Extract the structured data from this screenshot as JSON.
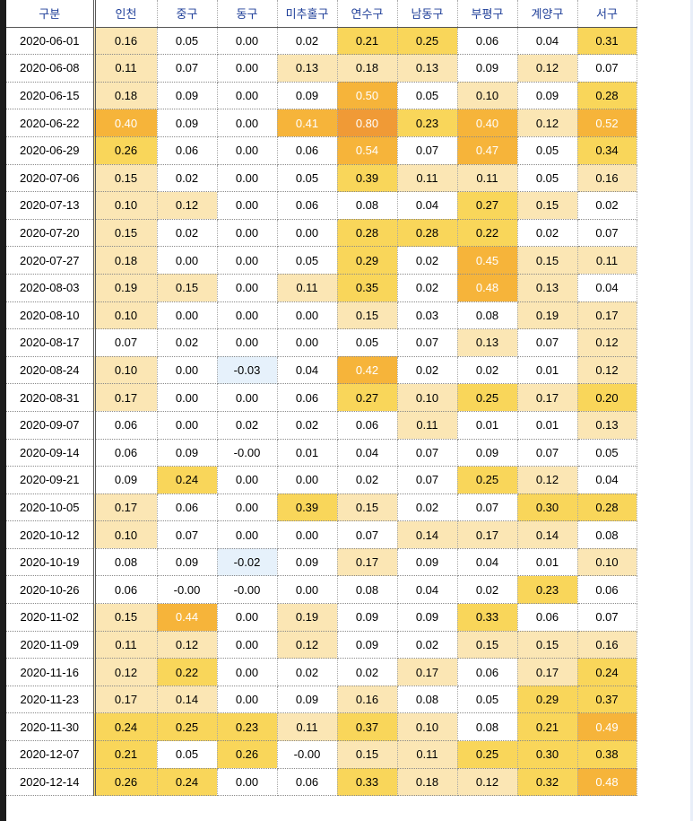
{
  "chart_data": {
    "type": "table",
    "corner_label": "구분",
    "columns": [
      "인천",
      "중구",
      "동구",
      "미추홀구",
      "연수구",
      "남동구",
      "부평구",
      "계양구",
      "서구"
    ],
    "rows": [
      {
        "date": "2020-06-01",
        "values": [
          "0.16",
          "0.05",
          "0.00",
          "0.02",
          "0.21",
          "0.25",
          "0.06",
          "0.04",
          "0.31"
        ]
      },
      {
        "date": "2020-06-08",
        "values": [
          "0.11",
          "0.07",
          "0.00",
          "0.13",
          "0.18",
          "0.13",
          "0.09",
          "0.12",
          "0.07"
        ]
      },
      {
        "date": "2020-06-15",
        "values": [
          "0.18",
          "0.09",
          "0.00",
          "0.09",
          "0.50",
          "0.05",
          "0.10",
          "0.09",
          "0.28"
        ]
      },
      {
        "date": "2020-06-22",
        "values": [
          "0.40",
          "0.09",
          "0.00",
          "0.41",
          "0.80",
          "0.23",
          "0.40",
          "0.12",
          "0.52"
        ]
      },
      {
        "date": "2020-06-29",
        "values": [
          "0.26",
          "0.06",
          "0.00",
          "0.06",
          "0.54",
          "0.07",
          "0.47",
          "0.05",
          "0.34"
        ]
      },
      {
        "date": "2020-07-06",
        "values": [
          "0.15",
          "0.02",
          "0.00",
          "0.05",
          "0.39",
          "0.11",
          "0.11",
          "0.05",
          "0.16"
        ]
      },
      {
        "date": "2020-07-13",
        "values": [
          "0.10",
          "0.12",
          "0.00",
          "0.06",
          "0.08",
          "0.04",
          "0.27",
          "0.15",
          "0.02"
        ]
      },
      {
        "date": "2020-07-20",
        "values": [
          "0.15",
          "0.02",
          "0.00",
          "0.00",
          "0.28",
          "0.28",
          "0.22",
          "0.02",
          "0.07"
        ]
      },
      {
        "date": "2020-07-27",
        "values": [
          "0.18",
          "0.00",
          "0.00",
          "0.05",
          "0.29",
          "0.02",
          "0.45",
          "0.15",
          "0.11"
        ]
      },
      {
        "date": "2020-08-03",
        "values": [
          "0.19",
          "0.15",
          "0.00",
          "0.11",
          "0.35",
          "0.02",
          "0.48",
          "0.13",
          "0.04"
        ]
      },
      {
        "date": "2020-08-10",
        "values": [
          "0.10",
          "0.00",
          "0.00",
          "0.00",
          "0.15",
          "0.03",
          "0.08",
          "0.19",
          "0.17"
        ]
      },
      {
        "date": "2020-08-17",
        "values": [
          "0.07",
          "0.02",
          "0.00",
          "0.00",
          "0.05",
          "0.07",
          "0.13",
          "0.07",
          "0.12"
        ]
      },
      {
        "date": "2020-08-24",
        "values": [
          "0.10",
          "0.00",
          "-0.03",
          "0.04",
          "0.42",
          "0.02",
          "0.02",
          "0.01",
          "0.12"
        ]
      },
      {
        "date": "2020-08-31",
        "values": [
          "0.17",
          "0.00",
          "0.00",
          "0.06",
          "0.27",
          "0.10",
          "0.25",
          "0.17",
          "0.20"
        ]
      },
      {
        "date": "2020-09-07",
        "values": [
          "0.06",
          "0.00",
          "0.02",
          "0.02",
          "0.06",
          "0.11",
          "0.01",
          "0.01",
          "0.13"
        ]
      },
      {
        "date": "2020-09-14",
        "values": [
          "0.06",
          "0.09",
          "-0.00",
          "0.01",
          "0.04",
          "0.07",
          "0.09",
          "0.07",
          "0.05"
        ]
      },
      {
        "date": "2020-09-21",
        "values": [
          "0.09",
          "0.24",
          "0.00",
          "0.00",
          "0.02",
          "0.07",
          "0.25",
          "0.12",
          "0.04"
        ]
      },
      {
        "date": "2020-10-05",
        "values": [
          "0.17",
          "0.06",
          "0.00",
          "0.39",
          "0.15",
          "0.02",
          "0.07",
          "0.30",
          "0.28"
        ]
      },
      {
        "date": "2020-10-12",
        "values": [
          "0.10",
          "0.07",
          "0.00",
          "0.00",
          "0.07",
          "0.14",
          "0.17",
          "0.14",
          "0.08"
        ]
      },
      {
        "date": "2020-10-19",
        "values": [
          "0.08",
          "0.09",
          "-0.02",
          "0.09",
          "0.17",
          "0.09",
          "0.04",
          "0.01",
          "0.10"
        ]
      },
      {
        "date": "2020-10-26",
        "values": [
          "0.06",
          "-0.00",
          "-0.00",
          "0.00",
          "0.08",
          "0.04",
          "0.02",
          "0.23",
          "0.06"
        ]
      },
      {
        "date": "2020-11-02",
        "values": [
          "0.15",
          "0.44",
          "0.00",
          "0.19",
          "0.09",
          "0.09",
          "0.33",
          "0.06",
          "0.07"
        ]
      },
      {
        "date": "2020-11-09",
        "values": [
          "0.11",
          "0.12",
          "0.00",
          "0.12",
          "0.09",
          "0.02",
          "0.15",
          "0.15",
          "0.16"
        ]
      },
      {
        "date": "2020-11-16",
        "values": [
          "0.12",
          "0.22",
          "0.00",
          "0.02",
          "0.02",
          "0.17",
          "0.06",
          "0.17",
          "0.24"
        ]
      },
      {
        "date": "2020-11-23",
        "values": [
          "0.17",
          "0.14",
          "0.00",
          "0.09",
          "0.16",
          "0.08",
          "0.05",
          "0.29",
          "0.37"
        ]
      },
      {
        "date": "2020-11-30",
        "values": [
          "0.24",
          "0.25",
          "0.23",
          "0.11",
          "0.37",
          "0.10",
          "0.08",
          "0.21",
          "0.49"
        ]
      },
      {
        "date": "2020-12-07",
        "values": [
          "0.21",
          "0.05",
          "0.26",
          "-0.00",
          "0.15",
          "0.11",
          "0.25",
          "0.30",
          "0.38"
        ]
      },
      {
        "date": "2020-12-14",
        "values": [
          "0.26",
          "0.24",
          "0.00",
          "0.06",
          "0.33",
          "0.18",
          "0.12",
          "0.32",
          "0.48"
        ]
      }
    ],
    "color_scale": {
      "negative": "#e6f1fb",
      "light": "#fbe6b4",
      "mid": "#f9d65a",
      "high": "#f6b43a",
      "max": "#f09a36",
      "header_text": "#1f3f99"
    }
  }
}
